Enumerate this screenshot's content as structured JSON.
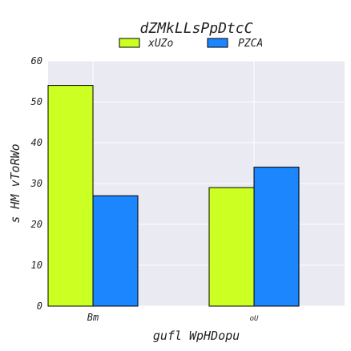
{
  "chart_data": {
    "type": "bar",
    "title": "dZMkLLsPpDtcC",
    "xlabel": "gufl WpHDopu",
    "ylabel": "s HM vToRWo",
    "categories": [
      "Bm",
      "oU"
    ],
    "series": [
      {
        "name": "xUZo",
        "values": [
          54,
          29
        ],
        "color": "#ccff22"
      },
      {
        "name": "PZCA",
        "values": [
          27,
          34
        ],
        "color": "#1c86ff"
      }
    ],
    "ylim": [
      0,
      60
    ],
    "yticks": [
      0,
      10,
      20,
      30,
      40,
      50,
      60
    ],
    "grid": true,
    "legend": "top-center",
    "background": "#eaeaf2"
  }
}
